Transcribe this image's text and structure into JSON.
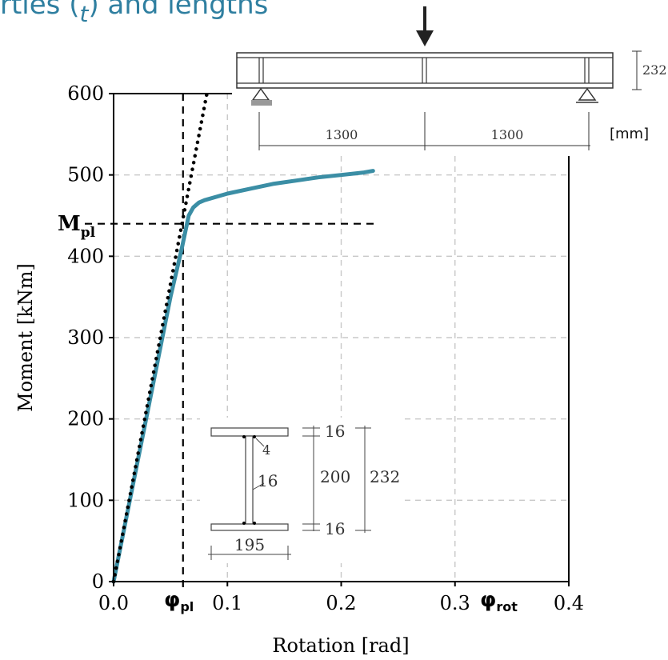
{
  "page_title_fragment": "rties (",
  "page_title_subscript": "t",
  "page_title_end": ") and lengths",
  "colors": {
    "curve": "#3b8ea5",
    "dotted": "#000000",
    "grid": "#c8c8c8",
    "title": "#2f7fa0"
  },
  "chart_data": {
    "type": "line",
    "xlabel": "Rotation [rad]",
    "ylabel": "Moment [kNm]",
    "xlim": [
      0,
      0.4
    ],
    "ylim": [
      0,
      600
    ],
    "x_ticks": [
      "0.0",
      "0.1",
      "0.2",
      "0.3",
      "0.4"
    ],
    "y_ticks": [
      "0",
      "100",
      "200",
      "300",
      "400",
      "500",
      "600"
    ],
    "x_tick_values": [
      0,
      0.1,
      0.2,
      0.3,
      0.4
    ],
    "y_tick_values": [
      0,
      100,
      200,
      300,
      400,
      500,
      600
    ],
    "grid": true,
    "series": [
      {
        "style": "solid",
        "x": [
          0,
          0.01,
          0.02,
          0.03,
          0.04,
          0.05,
          0.06,
          0.063,
          0.066,
          0.07,
          0.075,
          0.08,
          0.09,
          0.1,
          0.12,
          0.14,
          0.16,
          0.18,
          0.2,
          0.22,
          0.228
        ],
        "y": [
          0,
          70,
          140,
          210,
          280,
          350,
          410,
          430,
          450,
          460,
          466,
          469,
          473,
          477,
          483,
          489,
          493,
          497,
          500,
          503,
          505
        ]
      },
      {
        "style": "dotted",
        "x": [
          0,
          0.082
        ],
        "y": [
          0,
          600
        ]
      }
    ],
    "reference_lines": {
      "M_pl": 440,
      "phi_pl": 0.061,
      "hline_x_end": 0.23
    },
    "annotations": {
      "M_pl_label": "M",
      "M_pl_sub": "pl",
      "phi_pl_label": "φ",
      "phi_pl_sub": "pl",
      "phi_rot_label": "φ",
      "phi_rot_sub": "rot"
    }
  },
  "beam_sketch": {
    "height_label": "232",
    "span_left": "1300",
    "span_right": "1300",
    "unit": "[mm]"
  },
  "section_sketch": {
    "flange_top": "16",
    "web_height": "200",
    "total_height": "232",
    "weld": "4",
    "web_thickness": "16",
    "flange_bottom": "16",
    "flange_width": "195"
  }
}
